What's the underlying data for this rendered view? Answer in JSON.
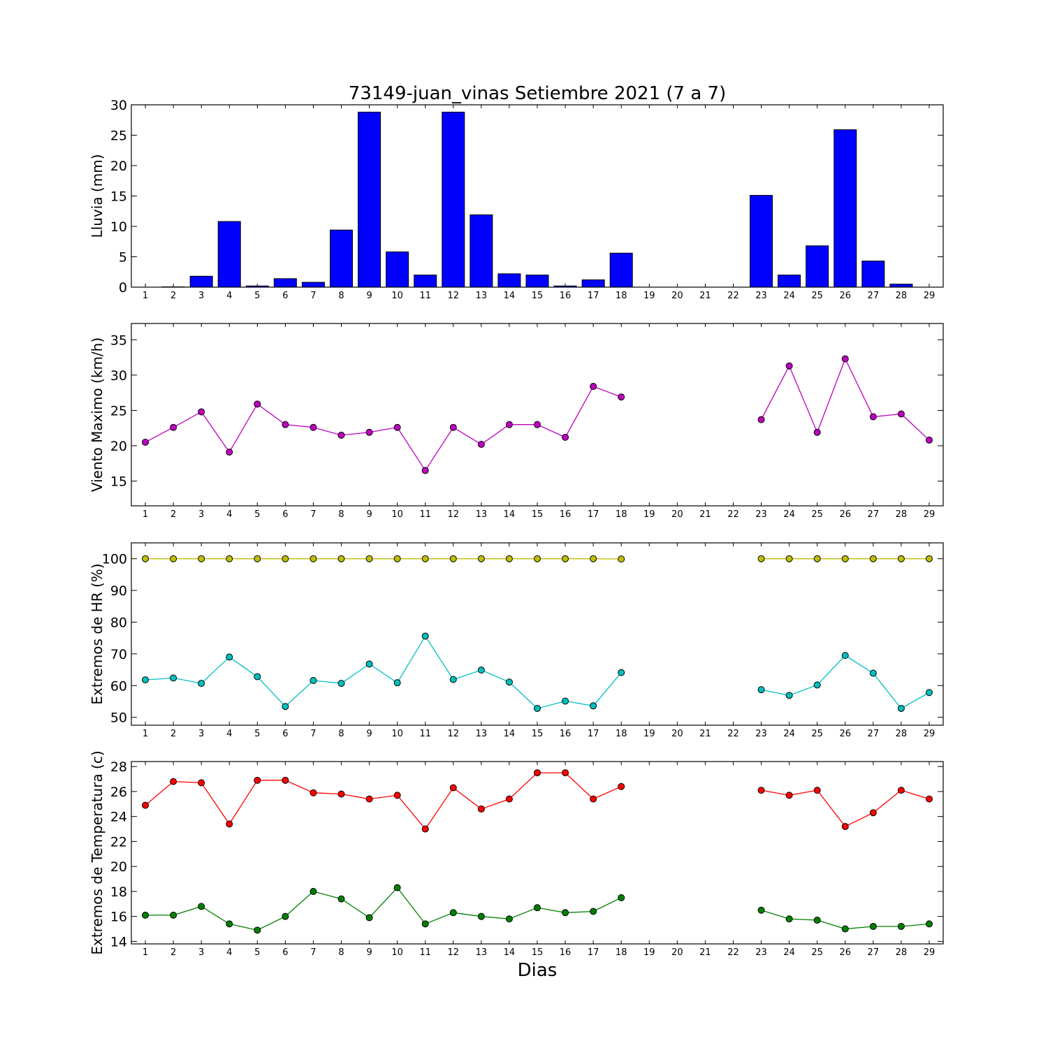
{
  "title": "73149-juan_vinas Setiembre 2021  (7 a 7)",
  "xlabel": "Dias",
  "colors": {
    "rain_bar": "#0000ff",
    "wind": "#bf00bf",
    "hr_max": "#bfbf00",
    "hr_min": "#00bfbf",
    "temp_max": "#ff0000",
    "temp_min": "#008000"
  },
  "chart_data": [
    {
      "type": "bar",
      "name": "lluvia",
      "ylabel": "Lluvia (mm)",
      "x": [
        1,
        2,
        3,
        4,
        5,
        6,
        7,
        8,
        9,
        10,
        11,
        12,
        13,
        14,
        15,
        16,
        17,
        18,
        19,
        20,
        21,
        22,
        23,
        24,
        25,
        26,
        27,
        28,
        29
      ],
      "values": [
        0,
        0.05,
        1.8,
        10.8,
        0.2,
        1.4,
        0.8,
        9.4,
        28.8,
        5.8,
        2.0,
        28.8,
        11.9,
        2.2,
        2.0,
        0.2,
        1.2,
        5.6,
        0,
        0,
        0,
        0,
        15.1,
        2.0,
        6.8,
        25.9,
        4.3,
        0.5,
        0
      ],
      "xlim": [
        0.5,
        29.5
      ],
      "ylim": [
        0,
        30
      ],
      "yticks": [
        0,
        5,
        10,
        15,
        20,
        25,
        30
      ]
    },
    {
      "type": "line",
      "name": "viento",
      "ylabel": "Viento Maximo (km/h)",
      "x": [
        1,
        2,
        3,
        4,
        5,
        6,
        7,
        8,
        9,
        10,
        11,
        12,
        13,
        14,
        15,
        16,
        17,
        18,
        19,
        20,
        21,
        22,
        23,
        24,
        25,
        26,
        27,
        28,
        29
      ],
      "series": [
        {
          "values": [
            20.5,
            22.6,
            24.8,
            19.1,
            25.9,
            23.0,
            22.6,
            21.5,
            21.9,
            22.6,
            16.5,
            22.6,
            20.2,
            23.0,
            23.0,
            21.2,
            28.4,
            26.9,
            null,
            null,
            null,
            null,
            23.7,
            31.3,
            21.9,
            32.3,
            24.1,
            24.5,
            20.8
          ]
        }
      ],
      "xlim": [
        0.5,
        29.5
      ],
      "ylim": [
        11.5,
        37.3
      ],
      "yticks": [
        15,
        20,
        25,
        30,
        35
      ]
    },
    {
      "type": "line",
      "name": "humedad",
      "ylabel": "Extremos de HR (%)",
      "x": [
        1,
        2,
        3,
        4,
        5,
        6,
        7,
        8,
        9,
        10,
        11,
        12,
        13,
        14,
        15,
        16,
        17,
        18,
        19,
        20,
        21,
        22,
        23,
        24,
        25,
        26,
        27,
        28,
        29
      ],
      "series": [
        {
          "values": [
            100,
            100,
            100,
            100,
            100,
            100,
            100,
            100,
            100,
            100,
            100,
            100,
            100,
            100,
            100,
            100,
            100,
            99.9,
            null,
            null,
            null,
            null,
            100,
            100,
            100,
            100,
            100,
            100,
            100
          ]
        },
        {
          "values": [
            61.8,
            62.4,
            60.7,
            69.0,
            62.8,
            53.4,
            61.6,
            60.7,
            66.8,
            60.9,
            75.6,
            61.9,
            64.9,
            61.1,
            52.8,
            55.1,
            53.6,
            64.1,
            null,
            null,
            null,
            null,
            58.7,
            56.9,
            60.2,
            69.5,
            63.9,
            52.8,
            57.8
          ]
        }
      ],
      "xlim": [
        0.5,
        29.5
      ],
      "ylim": [
        47.5,
        105
      ],
      "yticks": [
        50,
        60,
        70,
        80,
        90,
        100
      ]
    },
    {
      "type": "line",
      "name": "temperatura",
      "ylabel": "Extremos de Temperatura (c)",
      "x": [
        1,
        2,
        3,
        4,
        5,
        6,
        7,
        8,
        9,
        10,
        11,
        12,
        13,
        14,
        15,
        16,
        17,
        18,
        19,
        20,
        21,
        22,
        23,
        24,
        25,
        26,
        27,
        28,
        29
      ],
      "series": [
        {
          "values": [
            24.9,
            26.8,
            26.7,
            23.4,
            26.9,
            26.9,
            25.9,
            25.8,
            25.4,
            25.7,
            23.0,
            26.3,
            24.6,
            25.4,
            27.5,
            27.5,
            25.4,
            26.4,
            null,
            null,
            null,
            null,
            26.1,
            25.7,
            26.1,
            23.2,
            24.3,
            26.1,
            25.4
          ]
        },
        {
          "values": [
            16.1,
            16.1,
            16.8,
            15.4,
            14.9,
            16.0,
            18.0,
            17.4,
            15.9,
            18.3,
            15.4,
            16.3,
            16.0,
            15.8,
            16.7,
            16.3,
            16.4,
            17.5,
            null,
            null,
            null,
            null,
            16.5,
            15.8,
            15.7,
            15.0,
            15.2,
            15.2,
            15.4
          ]
        }
      ],
      "xlim": [
        0.5,
        29.5
      ],
      "ylim": [
        13.8,
        28.4
      ],
      "yticks": [
        14,
        16,
        18,
        20,
        22,
        24,
        26,
        28
      ]
    }
  ]
}
